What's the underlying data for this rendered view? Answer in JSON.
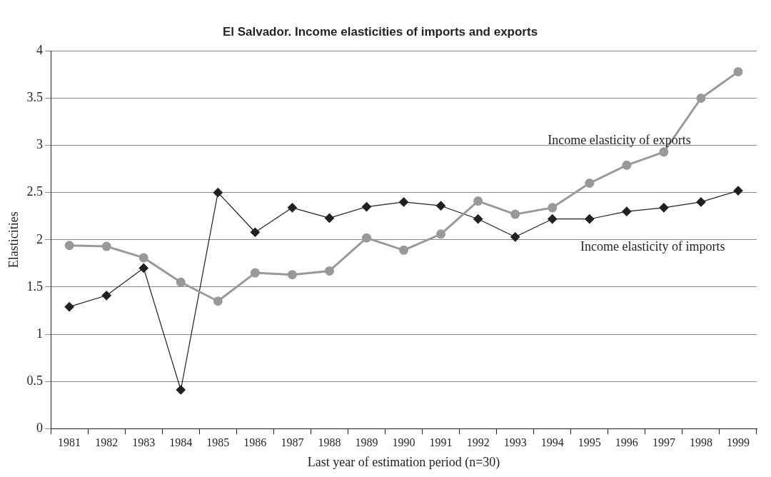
{
  "chart_data": {
    "type": "line",
    "title": "El Salvador. Income elasticities of imports and exports",
    "xlabel": "Last year of estimation period (n=30)",
    "ylabel": "Elasticities",
    "categories": [
      "1981",
      "1982",
      "1983",
      "1984",
      "1985",
      "1986",
      "1987",
      "1988",
      "1989",
      "1990",
      "1991",
      "1992",
      "1993",
      "1994",
      "1995",
      "1996",
      "1997",
      "1998",
      "1999"
    ],
    "series": [
      {
        "name": "Income elasticity of imports",
        "color": "#231f20",
        "marker": "diamond",
        "values": [
          1.29,
          1.41,
          1.7,
          0.41,
          2.5,
          2.08,
          2.34,
          2.23,
          2.35,
          2.4,
          2.36,
          2.22,
          2.03,
          2.22,
          2.22,
          2.3,
          2.34,
          2.4,
          2.52
        ]
      },
      {
        "name": "Income elasticity of exports",
        "color": "#999999",
        "marker": "circle",
        "values": [
          1.94,
          1.93,
          1.81,
          1.55,
          1.35,
          1.65,
          1.63,
          1.67,
          2.02,
          1.89,
          2.06,
          2.41,
          2.27,
          2.34,
          2.6,
          2.79,
          2.93,
          3.5,
          3.78
        ]
      }
    ],
    "ylim": [
      0,
      4
    ],
    "yticks": [
      0,
      0.5,
      1,
      1.5,
      2,
      2.5,
      3,
      3.5,
      4
    ],
    "grid": "y",
    "legend": false
  }
}
